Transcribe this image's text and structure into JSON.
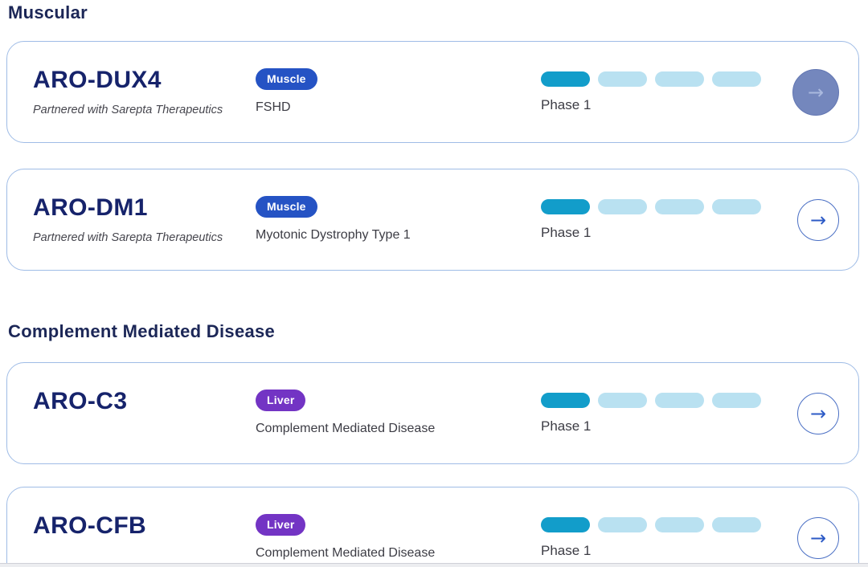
{
  "sections": [
    {
      "title": "Muscular",
      "programs": [
        {
          "name": "ARO-DUX4",
          "partnered": "Partnered with Sarepta Therapeutics",
          "badge": {
            "label": "Muscle",
            "color": "#2553c4"
          },
          "indication": "FSHD",
          "phase": "Phase 1",
          "phases_complete": 1,
          "phases_total": 4,
          "arrow_state": "hover"
        },
        {
          "name": "ARO-DM1",
          "partnered": "Partnered with Sarepta Therapeutics",
          "badge": {
            "label": "Muscle",
            "color": "#2553c4"
          },
          "indication": "Myotonic Dystrophy Type 1",
          "phase": "Phase 1",
          "phases_complete": 1,
          "phases_total": 4,
          "arrow_state": "default"
        }
      ]
    },
    {
      "title": "Complement Mediated Disease",
      "programs": [
        {
          "name": "ARO-C3",
          "partnered": null,
          "badge": {
            "label": "Liver",
            "color": "#7334c4"
          },
          "indication": "Complement Mediated Disease",
          "phase": "Phase 1",
          "phases_complete": 1,
          "phases_total": 4,
          "arrow_state": "default"
        },
        {
          "name": "ARO-CFB",
          "partnered": null,
          "badge": {
            "label": "Liver",
            "color": "#7334c4"
          },
          "indication": "Complement Mediated Disease",
          "phase": "Phase 1",
          "phases_complete": 1,
          "phases_total": 4,
          "arrow_state": "default"
        }
      ]
    }
  ],
  "icons": {
    "arrow_right": "→"
  },
  "colors": {
    "heading_navy": "#1c2757",
    "program_name_navy": "#16236b",
    "card_border": "#9fbce6",
    "badge_muscle": "#2553c4",
    "badge_liver": "#7334c4",
    "pill_active": "#129dca",
    "pill_inactive": "#b9e1f1",
    "arrow_stroke": "#2c5ac6",
    "arrow_hover_fill": "#7487bd"
  }
}
